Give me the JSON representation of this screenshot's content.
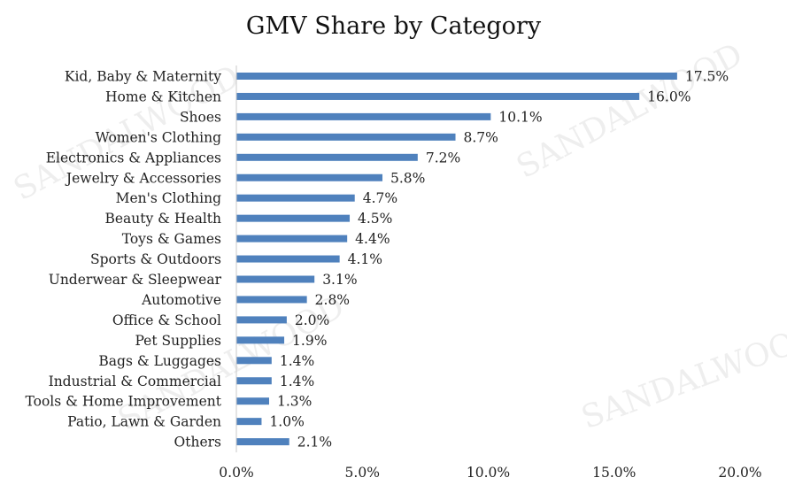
{
  "chart_data": {
    "type": "bar",
    "orientation": "horizontal",
    "title": "GMV Share by Category",
    "categories": [
      "Kid, Baby & Maternity",
      "Home & Kitchen",
      "Shoes",
      "Women's Clothing",
      "Electronics & Appliances",
      "Jewelry & Accessories",
      "Men's Clothing",
      "Beauty & Health",
      "Toys & Games",
      "Sports & Outdoors",
      "Underwear & Sleepwear",
      "Automotive",
      "Office & School ",
      "Pet Supplies",
      "Bags & Luggages",
      "Industrial & Commercial",
      "Tools & Home Improvement",
      "Patio, Lawn & Garden",
      "Others"
    ],
    "values": [
      17.5,
      16.0,
      10.1,
      8.7,
      7.2,
      5.8,
      4.7,
      4.5,
      4.4,
      4.1,
      3.1,
      2.8,
      2.0,
      1.9,
      1.4,
      1.4,
      1.3,
      1.0,
      2.1
    ],
    "value_labels": [
      "17.5%",
      "16.0%",
      "10.1%",
      "8.7%",
      "7.2%",
      "5.8%",
      "4.7%",
      "4.5%",
      "4.4%",
      "4.1%",
      "3.1%",
      "2.8%",
      "2.0%",
      "1.9%",
      "1.4%",
      "1.4%",
      "1.3%",
      "1.0%",
      "2.1%"
    ],
    "xlim": [
      0,
      20
    ],
    "xticks": [
      0,
      5,
      10,
      15,
      20
    ],
    "xtick_labels": [
      "0.0%",
      "5.0%",
      "10.0%",
      "15.0%",
      "20.0%"
    ],
    "xlabel": "",
    "ylabel": "",
    "grid": false,
    "legend": "none",
    "bar_color": "#4f81bd"
  },
  "watermark": "SANDALWOOD"
}
